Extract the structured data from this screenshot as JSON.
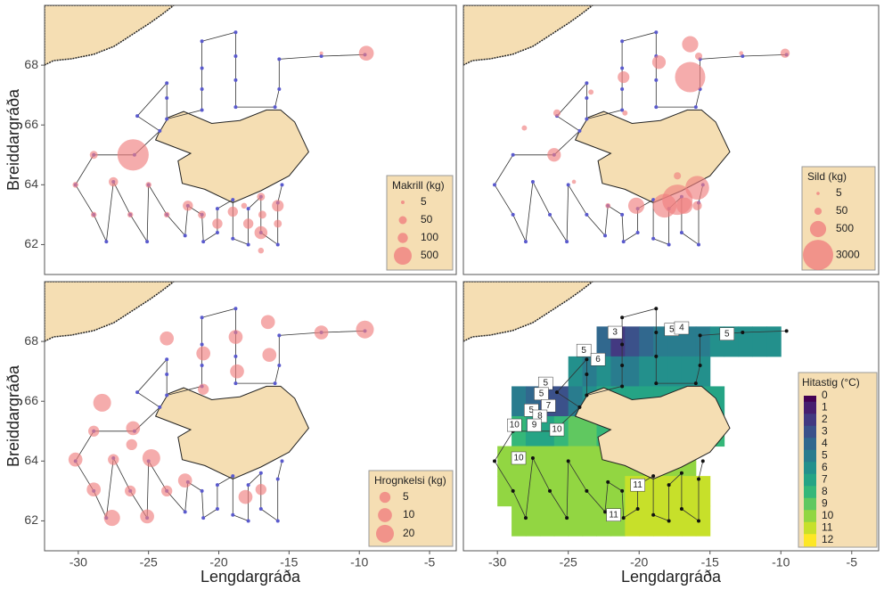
{
  "map": {
    "axes": {
      "xlabel": "Lengdargráða",
      "ylabel": "Breiddargráða",
      "xlim": [
        -32.4,
        -3.1
      ],
      "ylim": [
        61.0,
        70.0
      ],
      "xticks": [
        -30,
        -25,
        -20,
        -15,
        -10,
        -5
      ],
      "yticks": [
        62,
        64,
        66,
        68
      ]
    },
    "stations": {
      "lon": [
        -9.6,
        -12.7,
        -15.7,
        -15.7,
        -16.0,
        -18.8,
        -18.8,
        -18.8,
        -18.8,
        -21.2,
        -21.2,
        -21.2,
        -21.2,
        -23.7,
        -23.7,
        -23.7,
        -25.8,
        -24.2,
        -26.0,
        -28.9,
        -30.2,
        -28.9,
        -28.0,
        -27.5,
        -26.3,
        -25.1,
        -25.0,
        -23.7,
        -22.4,
        -22.2,
        -21.2,
        -21.1,
        -20.1,
        -20.1,
        -19.0,
        -19.0,
        -17.9,
        -17.9,
        -17.0,
        -17.0,
        -15.8,
        -15.8,
        -15.5
      ],
      "lat": [
        68.35,
        68.3,
        68.2,
        67.2,
        66.6,
        66.6,
        67.5,
        68.3,
        69.1,
        68.8,
        67.9,
        67.2,
        66.5,
        66.2,
        66.9,
        67.4,
        66.3,
        65.8,
        65.0,
        65.0,
        64.0,
        63.0,
        62.1,
        64.1,
        63.0,
        62.1,
        64.0,
        63.0,
        62.3,
        63.3,
        63.0,
        62.1,
        62.4,
        63.2,
        63.5,
        62.2,
        62.0,
        63.2,
        63.6,
        62.4,
        62.0,
        63.4,
        64.0
      ]
    },
    "panels": [
      {
        "type": "bubble",
        "legend_title": "Makrill (kg)",
        "legend_sizes": [
          5,
          50,
          100,
          500
        ],
        "color": "#f08080",
        "station_color": "#5a5acd",
        "points": {
          "lon": [
            -26.1,
            -9.5,
            -12.7,
            -28.9,
            -30.2,
            -27.5,
            -25.0,
            -28.9,
            -26.3,
            -23.7,
            -22.2,
            -21.2,
            -20.1,
            -19.0,
            -17.9,
            -17.0,
            -16.9,
            -15.8,
            -17.0,
            -15.8,
            -18.2,
            -17.0
          ],
          "lat": [
            65.0,
            68.4,
            68.4,
            65.0,
            64.0,
            64.1,
            64.0,
            63.0,
            63.0,
            63.0,
            63.3,
            63.0,
            62.7,
            63.1,
            62.7,
            63.6,
            63.0,
            63.3,
            62.4,
            62.7,
            63.3,
            61.8
          ],
          "values": [
            2500,
            300,
            5,
            50,
            20,
            80,
            20,
            20,
            20,
            20,
            100,
            50,
            100,
            100,
            100,
            50,
            50,
            150,
            200,
            50,
            20,
            20
          ]
        }
      },
      {
        "type": "bubble",
        "legend_title": "Sild (kg)",
        "legend_sizes": [
          5,
          50,
          500,
          3000
        ],
        "color": "#f08080",
        "station_color": "#5a5acd",
        "points": {
          "lon": [
            -16.4,
            -16.4,
            -18.6,
            -21.1,
            -9.7,
            -12.8,
            -15.8,
            -23.4,
            -25.8,
            -26.0,
            -28.1,
            -21.0,
            -24.6,
            -15.9,
            -17.3,
            -18.2,
            -20.2,
            -16.8,
            -15.9,
            -22.2,
            -17.3
          ],
          "lat": [
            67.6,
            68.7,
            68.1,
            67.6,
            68.4,
            68.4,
            68.3,
            67.1,
            66.4,
            65.0,
            65.9,
            66.4,
            64.1,
            63.9,
            63.5,
            63.3,
            63.3,
            63.3,
            63.3,
            63.3,
            64.3
          ],
          "values": [
            3000,
            500,
            300,
            200,
            100,
            10,
            50,
            20,
            50,
            300,
            20,
            20,
            10,
            1500,
            3000,
            1500,
            500,
            500,
            100,
            20,
            50
          ]
        }
      },
      {
        "type": "bubble",
        "legend_title": "Hrognkelsi (kg)",
        "legend_sizes": [
          5,
          10,
          20
        ],
        "color": "#f08080",
        "station_color": "#5a5acd",
        "points": {
          "lon": [
            -9.6,
            -12.7,
            -16.5,
            -16.4,
            -23.7,
            -21.1,
            -18.8,
            -18.7,
            -21.1,
            -28.3,
            -26.1,
            -28.9,
            -26.2,
            -30.2,
            -27.5,
            -24.8,
            -28.9,
            -26.3,
            -27.6,
            -25.1,
            -22.4,
            -18.1,
            -17.0,
            -23.7
          ],
          "lat": [
            68.4,
            68.3,
            68.65,
            67.55,
            68.1,
            67.6,
            68.15,
            67.0,
            66.4,
            65.95,
            65.1,
            65.0,
            64.55,
            64.05,
            64.05,
            64.1,
            63.05,
            63.0,
            62.1,
            62.15,
            63.35,
            62.8,
            63.05,
            63.0
          ],
          "values": [
            20,
            10,
            10,
            10,
            10,
            10,
            10,
            10,
            5,
            20,
            10,
            5,
            5,
            10,
            5,
            20,
            10,
            5,
            15,
            10,
            10,
            10,
            5,
            5
          ]
        }
      },
      {
        "type": "heatmap",
        "legend_title": "Hitastig (°C)",
        "colormap": "viridis",
        "clim": [
          0,
          12
        ],
        "colorbar_ticks": [
          0,
          1,
          2,
          3,
          4,
          5,
          6,
          7,
          8,
          9,
          10,
          11,
          12
        ],
        "station_color": "#111111",
        "grid": {
          "lon": [
            -29.5,
            -28.5,
            -27.5,
            -26.5,
            -25.5,
            -24.5,
            -23.5,
            -22.5,
            -21.5,
            -20.5,
            -19.5,
            -18.5,
            -17.5,
            -16.5,
            -15.5,
            -14.5,
            -13.5,
            -12.5,
            -11.5,
            -10.5
          ],
          "lat": [
            68,
            67,
            66,
            65,
            64,
            63,
            62
          ],
          "values": [
            [
              null,
              null,
              null,
              null,
              null,
              null,
              null,
              4,
              2,
              3,
              4,
              5,
              5,
              5,
              5,
              6,
              6,
              6,
              6,
              6
            ],
            [
              null,
              null,
              null,
              null,
              null,
              6,
              5,
              6,
              5,
              5,
              6,
              6,
              6,
              6,
              6,
              null,
              null,
              null,
              null,
              null
            ],
            [
              null,
              5,
              4,
              3,
              3,
              5,
              6,
              7,
              7,
              7,
              7,
              7,
              7,
              7,
              7,
              7,
              null,
              null,
              null,
              null
            ],
            [
              null,
              8,
              7,
              7,
              8,
              9,
              9,
              8,
              8,
              8,
              8,
              8,
              8,
              8,
              8,
              8,
              null,
              null,
              null,
              null
            ],
            [
              10,
              10,
              10,
              10,
              10,
              10,
              10,
              10,
              10,
              10,
              10,
              10,
              10,
              10,
              null,
              null,
              null,
              null,
              null,
              null
            ],
            [
              10,
              10,
              10,
              10,
              10,
              10,
              10,
              10,
              10,
              11,
              11,
              11,
              11,
              11,
              11,
              null,
              null,
              null,
              null,
              null
            ],
            [
              null,
              10,
              10,
              10,
              10,
              10,
              10,
              10,
              10,
              11,
              11,
              11,
              11,
              11,
              11,
              null,
              null,
              null,
              null,
              null
            ]
          ]
        },
        "contour_labels": {
          "lon": [
            -21.7,
            -17.7,
            -17.0,
            -13.8,
            -23.9,
            -22.9,
            -26.6,
            -26.9,
            -27.6,
            -26.4,
            -27.0,
            -27.4,
            -28.8,
            -25.8,
            -28.5,
            -20.1,
            -21.8
          ],
          "lat": [
            68.3,
            68.4,
            68.45,
            68.25,
            67.7,
            67.4,
            66.6,
            66.25,
            65.7,
            65.85,
            65.5,
            65.2,
            65.2,
            65.05,
            64.1,
            63.2,
            62.2
          ],
          "values": [
            3,
            5,
            4,
            5,
            5,
            6,
            5,
            5,
            5,
            7,
            8,
            9,
            10,
            10,
            10,
            11,
            11
          ]
        }
      }
    ]
  }
}
